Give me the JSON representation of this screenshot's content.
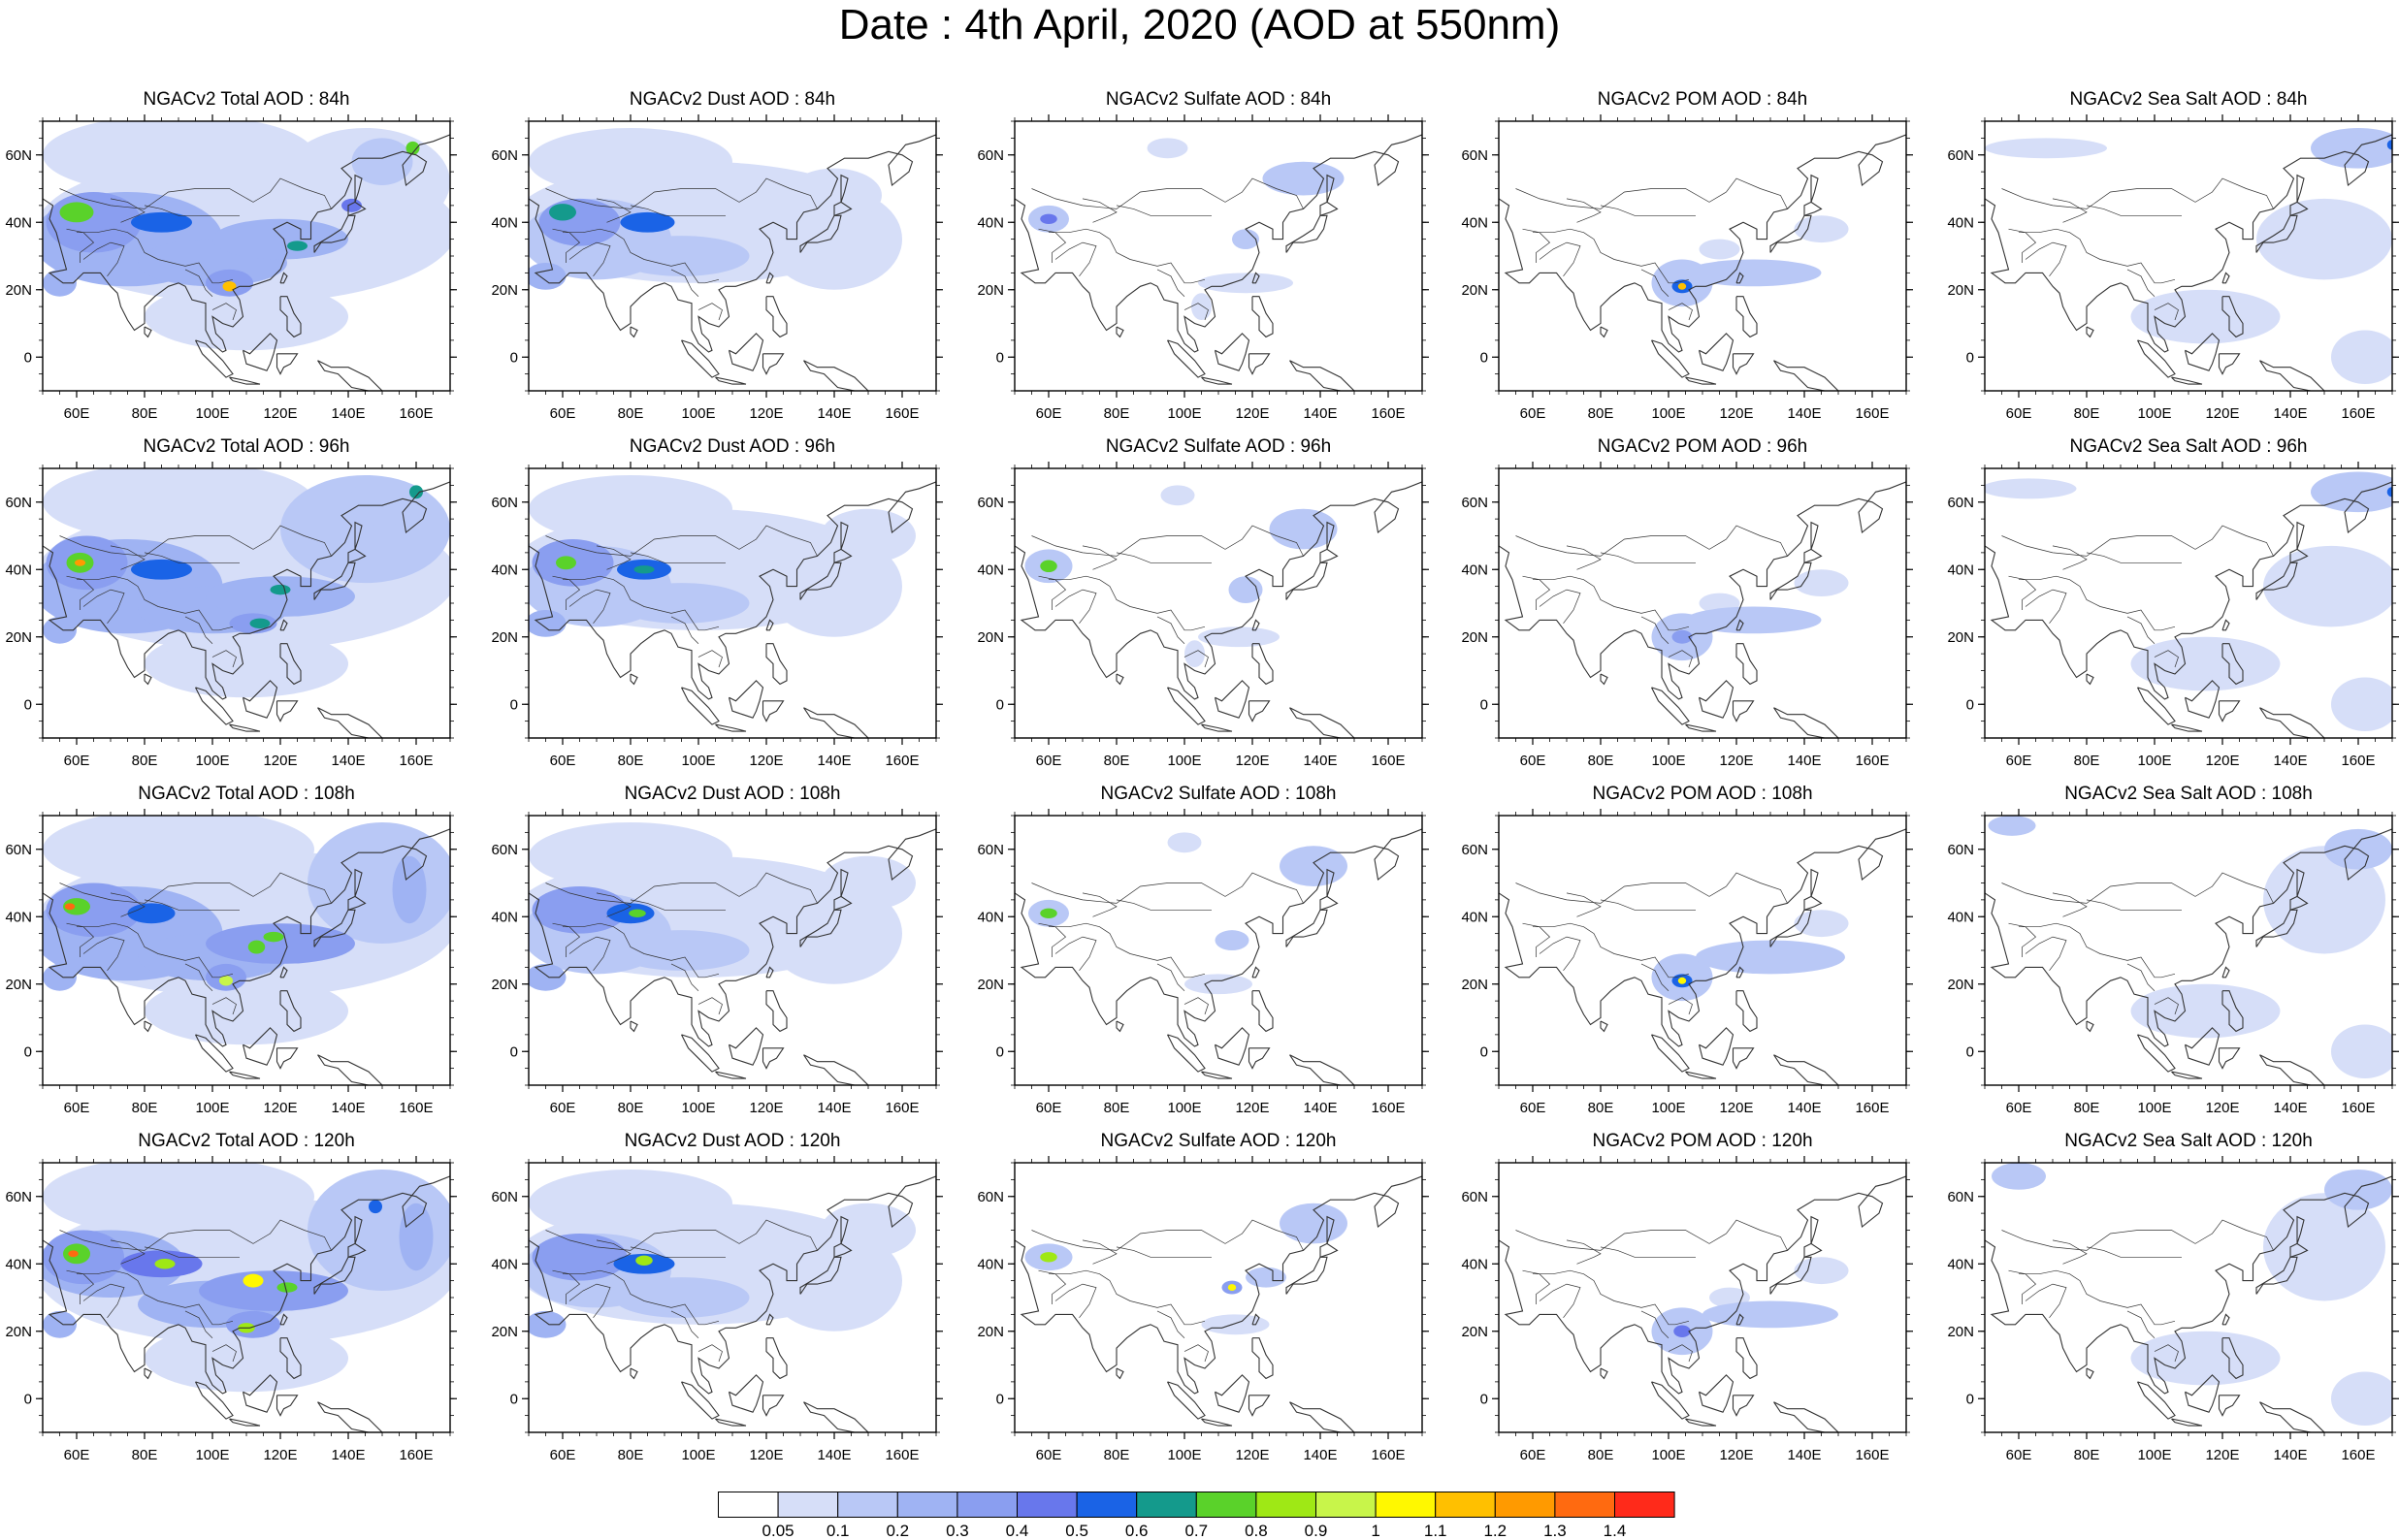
{
  "title": "Date : 4th April, 2020 (AOD at 550nm)",
  "rows": [
    "84h",
    "96h",
    "108h",
    "120h"
  ],
  "species": [
    "Total",
    "Dust",
    "Sulfate",
    "POM",
    "Sea Salt"
  ],
  "panel_titles": [
    [
      "NGACv2 Total AOD : 84h",
      "NGACv2 Dust AOD : 84h",
      "NGACv2 Sulfate AOD : 84h",
      "NGACv2 POM AOD : 84h",
      "NGACv2 Sea Salt AOD : 84h"
    ],
    [
      "NGACv2 Total AOD : 96h",
      "NGACv2 Dust AOD : 96h",
      "NGACv2 Sulfate AOD : 96h",
      "NGACv2 POM AOD : 96h",
      "NGACv2 Sea Salt AOD : 96h"
    ],
    [
      "NGACv2 Total AOD : 108h",
      "NGACv2 Dust AOD : 108h",
      "NGACv2 Sulfate AOD : 108h",
      "NGACv2 POM AOD : 108h",
      "NGACv2 Sea Salt AOD : 108h"
    ],
    [
      "NGACv2 Total AOD : 120h",
      "NGACv2 Dust AOD : 120h",
      "NGACv2 Sulfate AOD : 120h",
      "NGACv2 POM AOD : 120h",
      "NGACv2 Sea Salt  AOD : 120h"
    ]
  ],
  "map": {
    "lon_range": [
      50,
      170
    ],
    "lat_range": [
      -10,
      70
    ],
    "x_ticks": [
      "60E",
      "80E",
      "100E",
      "120E",
      "140E",
      "160E"
    ],
    "x_tick_values": [
      60,
      80,
      100,
      120,
      140,
      160
    ],
    "y_ticks": [
      "60N",
      "40N",
      "20N",
      "0"
    ],
    "y_tick_values": [
      60,
      40,
      20,
      0
    ]
  },
  "colorbar": {
    "labels": [
      "0.05",
      "0.1",
      "0.2",
      "0.3",
      "0.4",
      "0.5",
      "0.6",
      "0.7",
      "0.8",
      "0.9",
      "1",
      "1.1",
      "1.2",
      "1.3",
      "1.4"
    ],
    "colors": [
      "#ffffff",
      "#d6def8",
      "#b9c8f6",
      "#9fb3f3",
      "#8a9ef0",
      "#6877ec",
      "#1a63e6",
      "#149a8c",
      "#5ad22a",
      "#9fe815",
      "#c8f54a",
      "#fff800",
      "#ffc000",
      "#ff9a00",
      "#ff6a10",
      "#ff2a1a"
    ]
  }
}
